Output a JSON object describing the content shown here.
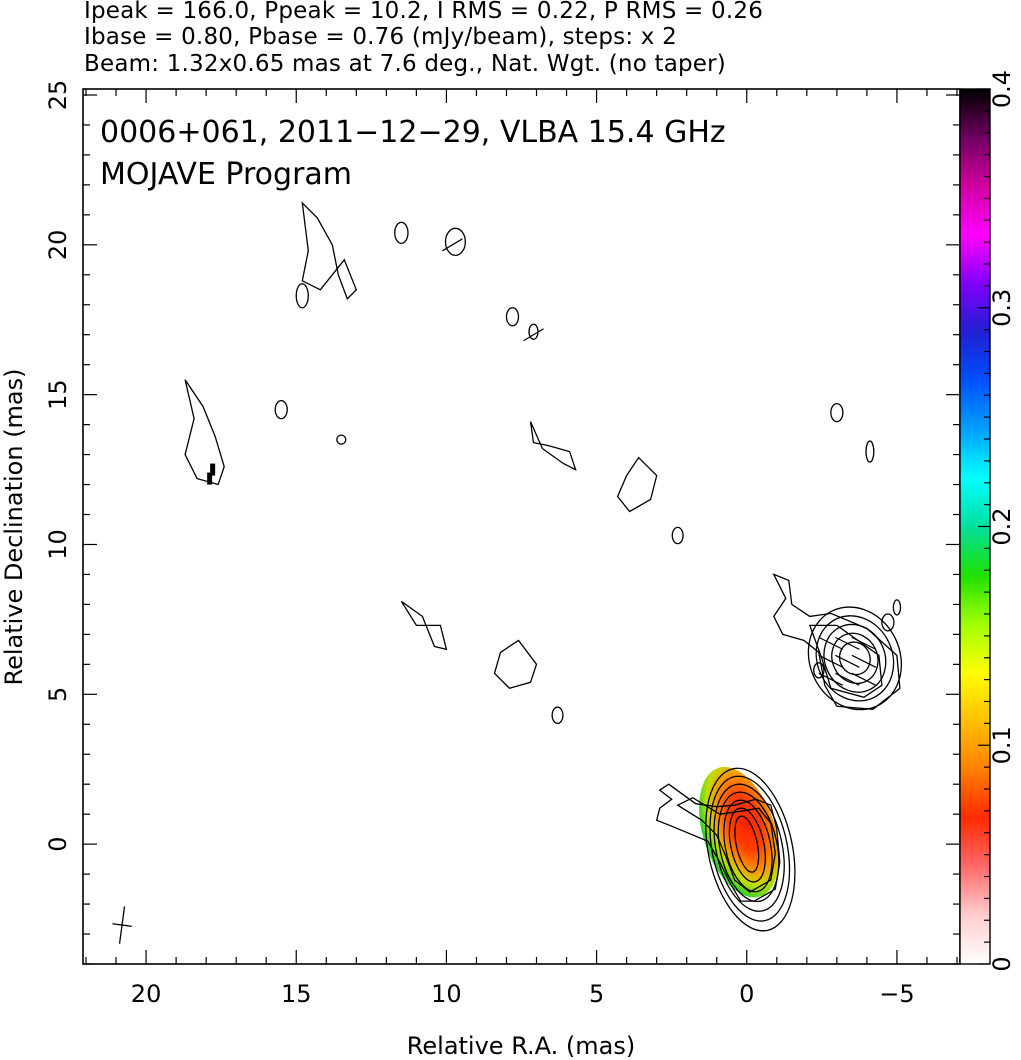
{
  "header": {
    "line1": "Ipeak = 166.0, Ppeak = 10.2, I RMS = 0.22, P RMS = 0.26",
    "line2": "Ibase = 0.80, Pbase = 0.76 (mJy/beam), steps: x 2",
    "line3": "Beam: 1.32x0.65 mas at 7.6 deg., Nat. Wgt. (no taper)"
  },
  "annotation": {
    "line1": "0006+061, 2011−12−29, VLBA 15.4 GHz",
    "line2": "MOJAVE Program"
  },
  "chart_data": {
    "type": "contour",
    "xlabel": "Relative R.A. (mas)",
    "ylabel": "Relative Declination (mas)",
    "xlim": [
      22.1,
      -7.1
    ],
    "ylim": [
      -4.0,
      25.2
    ],
    "x_ticks": [
      20,
      15,
      10,
      5,
      0,
      -5
    ],
    "x_tick_labels": [
      "20",
      "15",
      "10",
      "5",
      "0",
      "−5"
    ],
    "y_ticks": [
      0,
      5,
      10,
      15,
      20,
      25
    ],
    "y_tick_labels": [
      "0",
      "5",
      "10",
      "15",
      "20",
      "25"
    ],
    "colorbar": {
      "ticks": [
        0,
        0.1,
        0.2,
        0.3,
        0.4
      ],
      "tick_labels": [
        "0",
        "0.1",
        "0.2",
        "0.3",
        "0.4"
      ],
      "range": [
        0,
        0.4
      ],
      "colors": [
        "#ffffff",
        "#ffcccc",
        "#ff6a6a",
        "#ff2a00",
        "#ff7f00",
        "#ffc000",
        "#ffff00",
        "#a0ff00",
        "#20e000",
        "#00e0a0",
        "#00ffff",
        "#00a0ff",
        "#0050ff",
        "#2020d0",
        "#8000ff",
        "#ff00ff",
        "#d000a0",
        "#700060",
        "#000000"
      ]
    },
    "features": [
      {
        "name": "core",
        "center": [
          0.0,
          0.0
        ],
        "contour_radii": [
          [
            0.35,
            0.95
          ],
          [
            0.55,
            1.25
          ],
          [
            0.75,
            1.55
          ],
          [
            0.95,
            1.85
          ],
          [
            1.1,
            2.15
          ],
          [
            1.25,
            2.45
          ],
          [
            1.4,
            2.75
          ]
        ]
      },
      {
        "name": "jet component",
        "center": [
          -3.6,
          6.2
        ],
        "contour_radii": [
          [
            0.5,
            0.55
          ],
          [
            0.75,
            0.85
          ],
          [
            1.0,
            1.15
          ],
          [
            1.25,
            1.45
          ],
          [
            1.5,
            1.75
          ]
        ]
      },
      {
        "name": "polarization",
        "center": [
          0.25,
          0.4
        ],
        "fractional_pol_range": [
          0.02,
          0.2
        ]
      }
    ],
    "beam": {
      "major_mas": 1.32,
      "minor_mas": 0.65,
      "pa_deg": 7.6
    }
  }
}
